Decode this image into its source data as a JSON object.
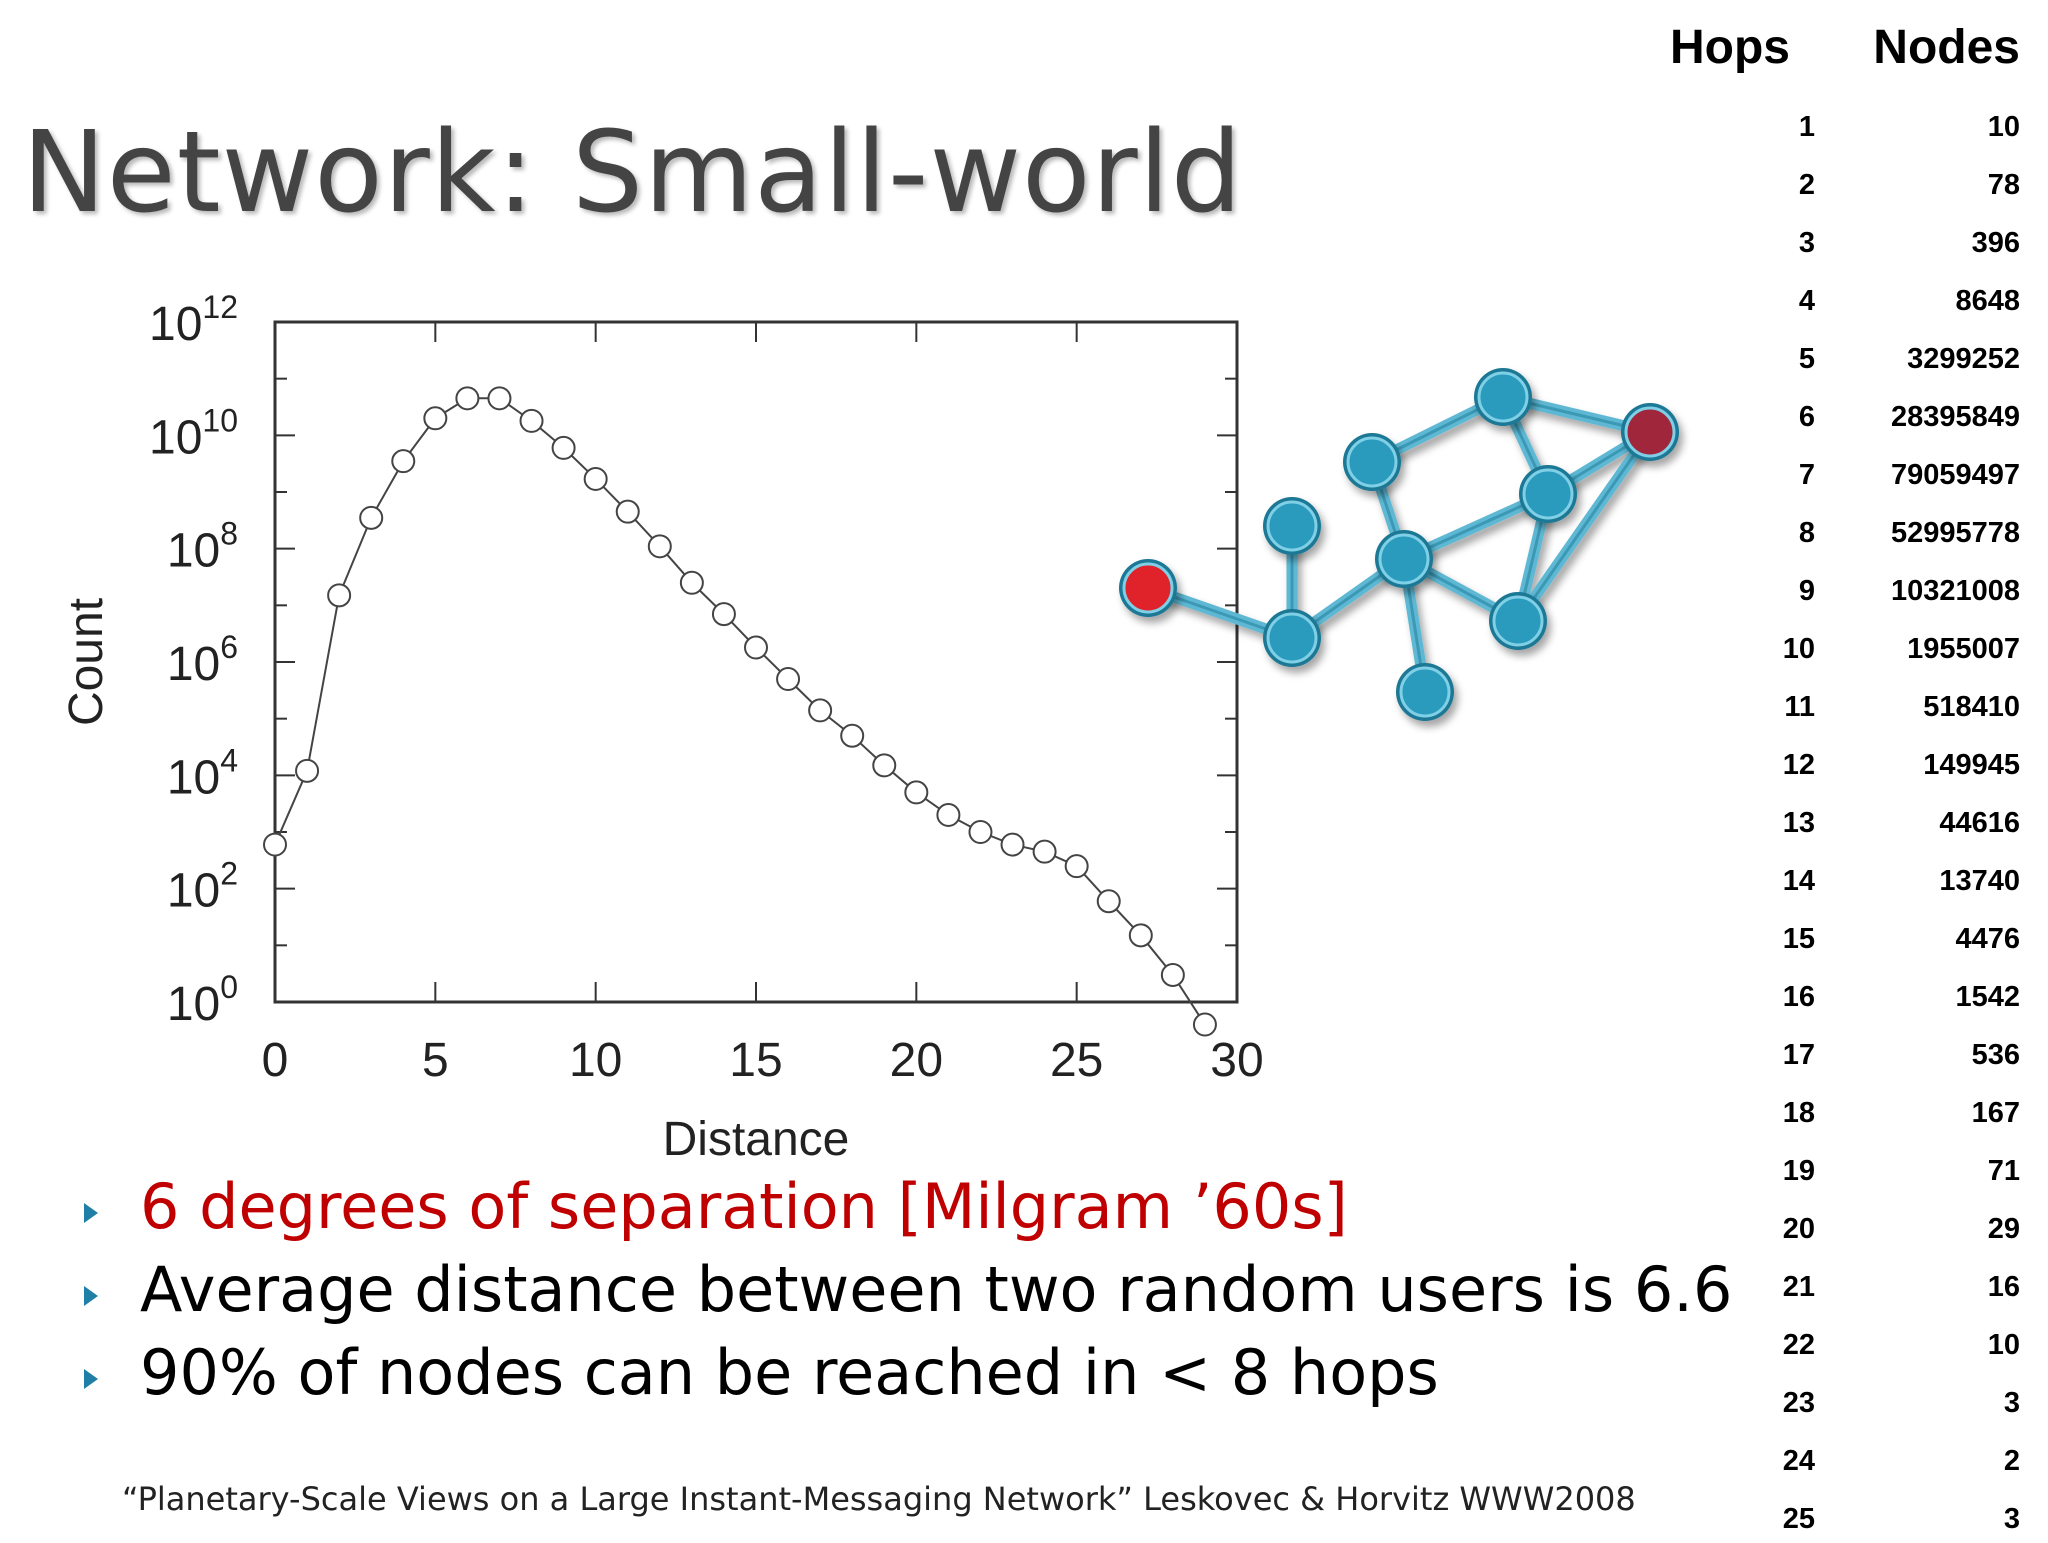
{
  "slide": {
    "title": "Network: Small-world",
    "bullets": [
      {
        "text": "6 degrees of separation [Milgram ’60s]",
        "color": "#c00000"
      },
      {
        "text": "Average distance between two random users is 6.6",
        "color": "#000000"
      },
      {
        "text": "90% of nodes can be reached in < 8 hops",
        "color": "#000000"
      }
    ],
    "citation": "“Planetary-Scale Views on a Large Instant-Messaging Network” Leskovec & Horvitz WWW2008",
    "bullet_icon": "triangle-bullet-icon",
    "accent_color": "#1f7fa7"
  },
  "chart_data": {
    "type": "scatter",
    "xlabel": "Distance",
    "ylabel": "Count",
    "xlim": [
      0,
      30
    ],
    "ylim_exponents": [
      0,
      12
    ],
    "log_y": true,
    "x_ticks": [
      "0",
      "5",
      "10",
      "15",
      "20",
      "25",
      "30"
    ],
    "y_ticks": [
      {
        "base": "10",
        "exp": "0"
      },
      {
        "base": "10",
        "exp": "2"
      },
      {
        "base": "10",
        "exp": "4"
      },
      {
        "base": "10",
        "exp": "6"
      },
      {
        "base": "10",
        "exp": "8"
      },
      {
        "base": "10",
        "exp": "10"
      },
      {
        "base": "10",
        "exp": "12"
      }
    ],
    "x": [
      0,
      1,
      2,
      3,
      4,
      5,
      6,
      7,
      8,
      9,
      10,
      11,
      12,
      13,
      14,
      15,
      16,
      17,
      18,
      19,
      20,
      21,
      22,
      23,
      24,
      25,
      26,
      27,
      28,
      29
    ],
    "y": [
      600,
      12000,
      15000000.0,
      350000000.0,
      3500000000.0,
      20000000000.0,
      45000000000.0,
      45000000000.0,
      18000000000.0,
      6000000000.0,
      1700000000.0,
      450000000.0,
      110000000.0,
      25000000.0,
      7000000.0,
      1800000.0,
      500000.0,
      140000.0,
      50000.0,
      15000.0,
      5000,
      2000,
      1000,
      600,
      450,
      250,
      60,
      15,
      3,
      0.4
    ],
    "marker": "open-circle",
    "line_color": "#444444"
  },
  "network": {
    "node_color": "#2a9bbd",
    "edge_color": "#5fb8d3",
    "source_node_color": "#e0202a",
    "target_node_color": "#a0283a"
  },
  "hop_table": {
    "headers": {
      "hops": "Hops",
      "nodes": "Nodes"
    },
    "rows": [
      {
        "hops": "1",
        "nodes": "10"
      },
      {
        "hops": "2",
        "nodes": "78"
      },
      {
        "hops": "3",
        "nodes": "396"
      },
      {
        "hops": "4",
        "nodes": "8648"
      },
      {
        "hops": "5",
        "nodes": "3299252"
      },
      {
        "hops": "6",
        "nodes": "28395849"
      },
      {
        "hops": "7",
        "nodes": "79059497"
      },
      {
        "hops": "8",
        "nodes": "52995778"
      },
      {
        "hops": "9",
        "nodes": "10321008"
      },
      {
        "hops": "10",
        "nodes": "1955007"
      },
      {
        "hops": "11",
        "nodes": "518410"
      },
      {
        "hops": "12",
        "nodes": "149945"
      },
      {
        "hops": "13",
        "nodes": "44616"
      },
      {
        "hops": "14",
        "nodes": "13740"
      },
      {
        "hops": "15",
        "nodes": "4476"
      },
      {
        "hops": "16",
        "nodes": "1542"
      },
      {
        "hops": "17",
        "nodes": "536"
      },
      {
        "hops": "18",
        "nodes": "167"
      },
      {
        "hops": "19",
        "nodes": "71"
      },
      {
        "hops": "20",
        "nodes": "29"
      },
      {
        "hops": "21",
        "nodes": "16"
      },
      {
        "hops": "22",
        "nodes": "10"
      },
      {
        "hops": "23",
        "nodes": "3"
      },
      {
        "hops": "24",
        "nodes": "2"
      },
      {
        "hops": "25",
        "nodes": "3"
      }
    ]
  }
}
